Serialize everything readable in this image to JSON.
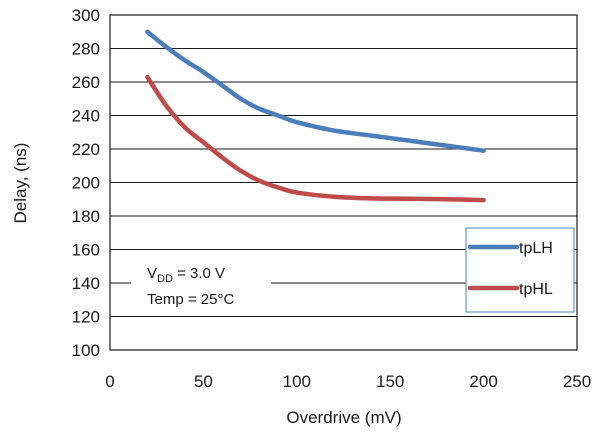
{
  "chart_data": {
    "type": "line",
    "xlabel": "Overdrive (mV)",
    "ylabel": "Delay, (ns)",
    "xlim": [
      0,
      250
    ],
    "ylim": [
      100,
      300
    ],
    "x_ticks": [
      "0",
      "50",
      "100",
      "150",
      "200",
      "250"
    ],
    "y_ticks": [
      "100",
      "120",
      "140",
      "160",
      "180",
      "200",
      "220",
      "240",
      "260",
      "280",
      "300"
    ],
    "grid": "horizontal",
    "legend_position": "right",
    "annotation": {
      "vdd_prefix": "V",
      "vdd_subscript": "DD",
      "vdd_value": " = 3.0 V",
      "temp": "Temp = 25°C"
    },
    "series": [
      {
        "name": "tpLH",
        "color": "#4a7ebb",
        "x": [
          20,
          30,
          40,
          50,
          60,
          70,
          80,
          90,
          100,
          120,
          140,
          160,
          180,
          200
        ],
        "y": [
          290,
          281,
          273,
          266,
          258,
          250,
          244,
          240,
          236,
          231,
          228,
          225,
          222,
          219
        ]
      },
      {
        "name": "tpHL",
        "color": "#be4b48",
        "x": [
          20,
          30,
          40,
          50,
          60,
          70,
          80,
          90,
          100,
          120,
          140,
          160,
          180,
          200
        ],
        "y": [
          263,
          246,
          233,
          224,
          215,
          207,
          201,
          197,
          194,
          191.5,
          190.5,
          190.3,
          190,
          189.5
        ]
      }
    ]
  }
}
